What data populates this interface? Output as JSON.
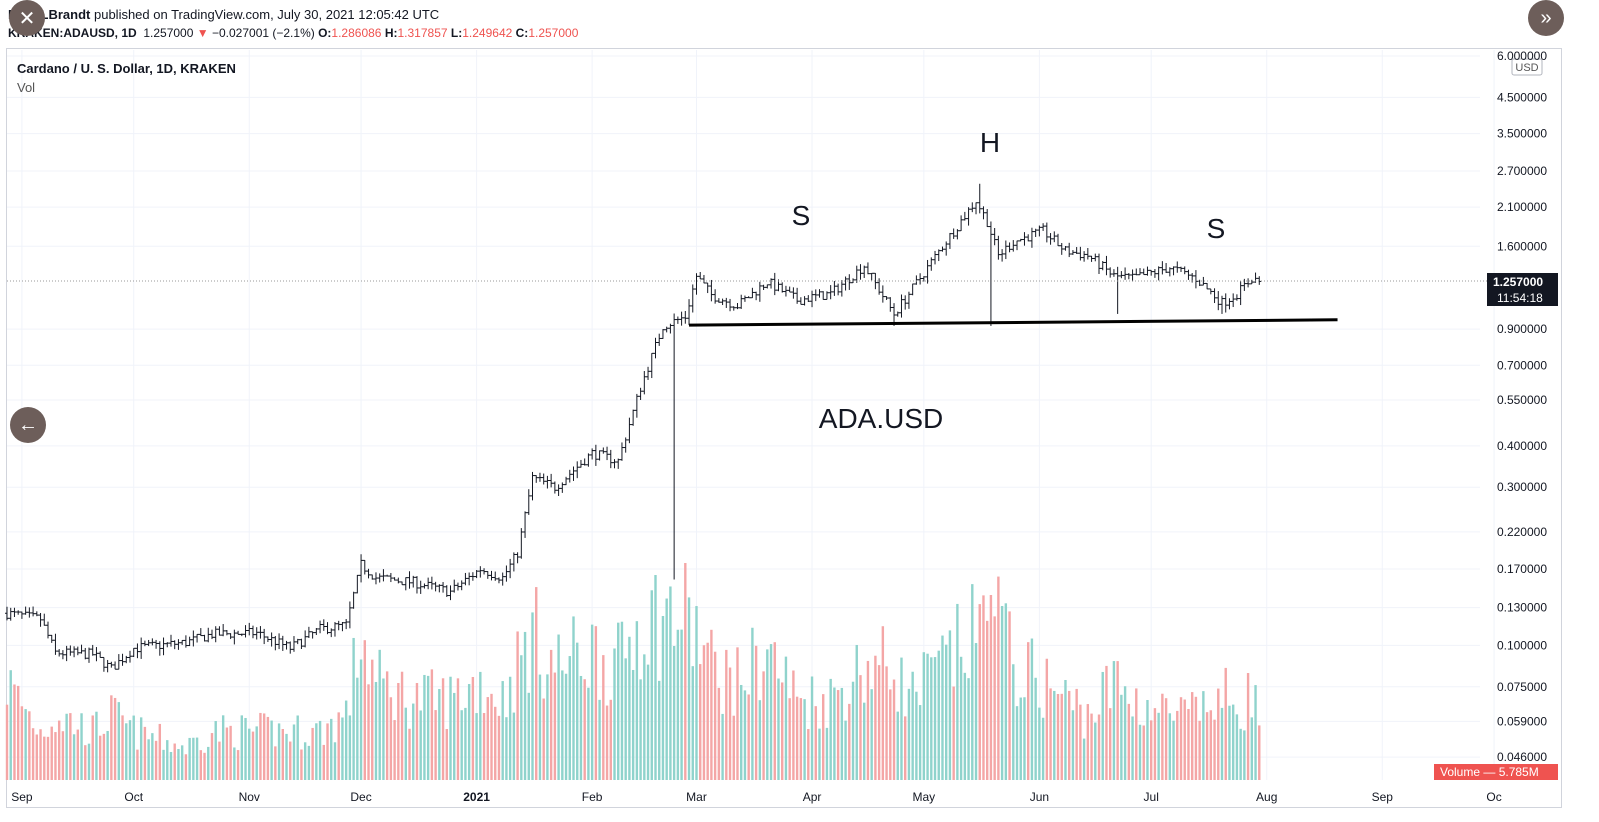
{
  "header": {
    "author": "PeterLBrandt",
    "published_text": "published on TradingView.com, July 30, 2021 12:05:42 UTC",
    "symbol": "KRAKEN:ADAUSD, 1D",
    "last": "1.257000",
    "change": "−0.027001 (−2.1%)",
    "o_label": "O:",
    "o": "1.286086",
    "h_label": "H:",
    "h": "1.317857",
    "l_label": "L:",
    "l": "1.249642",
    "c_label": "C:",
    "c": "1.257000"
  },
  "legend": {
    "title": "Cardano / U. S. Dollar, 1D, KRAKEN",
    "vol": "Vol"
  },
  "icons": {
    "close": "close-icon",
    "next": "double-chevron-right-icon",
    "prev": "arrow-left-icon"
  },
  "chart_data": {
    "type": "ohlc",
    "title": "Cardano / U. S. Dollar, 1D, KRAKEN",
    "price_scale": "log",
    "currency": "USD",
    "y_ticks": [
      "6.000000",
      "4.500000",
      "3.500000",
      "2.700000",
      "2.100000",
      "1.600000",
      "0.900000",
      "0.700000",
      "0.550000",
      "0.400000",
      "0.300000",
      "0.220000",
      "0.170000",
      "0.130000",
      "0.100000",
      "0.075000",
      "0.059000",
      "0.046000"
    ],
    "x_ticks": [
      "Sep",
      "Oct",
      "Nov",
      "Dec",
      "2021",
      "Feb",
      "Mar",
      "Apr",
      "May",
      "Jun",
      "Jul",
      "Aug",
      "Sep",
      "Oc"
    ],
    "last_price_label": "1.257000",
    "countdown_label": "11:54:18",
    "volume_label": "Volume — 5.785M",
    "annotations": [
      "S",
      "H",
      "S",
      "ADA.USD"
    ],
    "neckline": {
      "start": [
        "2021-02-27",
        0.925
      ],
      "end": [
        "2021-08-20",
        0.96
      ]
    },
    "colors": {
      "up": "#26a69a",
      "down": "#ef5350",
      "bar": "#131722",
      "volume_up": "#8fd3cc",
      "volume_down": "#f4a6a6"
    },
    "anchors": [
      [
        "2020-08-28",
        0.125,
        0.6
      ],
      [
        "2020-09-06",
        0.12,
        0.3
      ],
      [
        "2020-09-10",
        0.095,
        0.4
      ],
      [
        "2020-09-20",
        0.094,
        0.3
      ],
      [
        "2020-09-25",
        0.085,
        0.4
      ],
      [
        "2020-10-01",
        0.098,
        0.3
      ],
      [
        "2020-10-15",
        0.102,
        0.2
      ],
      [
        "2020-10-22",
        0.108,
        0.3
      ],
      [
        "2020-11-03",
        0.109,
        0.3
      ],
      [
        "2020-11-12",
        0.098,
        0.3
      ],
      [
        "2020-11-20",
        0.112,
        0.3
      ],
      [
        "2020-11-27",
        0.115,
        0.4
      ],
      [
        "2020-12-01",
        0.175,
        0.9
      ],
      [
        "2020-12-05",
        0.16,
        0.6
      ],
      [
        "2020-12-15",
        0.155,
        0.5
      ],
      [
        "2020-12-25",
        0.145,
        0.5
      ],
      [
        "2021-01-02",
        0.17,
        0.6
      ],
      [
        "2021-01-08",
        0.16,
        0.5
      ],
      [
        "2021-01-12",
        0.19,
        0.7
      ],
      [
        "2021-01-16",
        0.32,
        0.9
      ],
      [
        "2021-01-22",
        0.3,
        0.7
      ],
      [
        "2021-02-01",
        0.38,
        0.8
      ],
      [
        "2021-02-08",
        0.36,
        0.7
      ],
      [
        "2021-02-14",
        0.6,
        1.0
      ],
      [
        "2021-02-20",
        0.92,
        1.0
      ],
      [
        "2021-02-26",
        0.98,
        1.0
      ],
      [
        "2021-03-01",
        1.3,
        0.9
      ],
      [
        "2021-03-05",
        1.14,
        0.7
      ],
      [
        "2021-03-12",
        1.06,
        0.6
      ],
      [
        "2021-03-20",
        1.25,
        0.8
      ],
      [
        "2021-03-28",
        1.1,
        0.5
      ],
      [
        "2021-04-06",
        1.15,
        0.5
      ],
      [
        "2021-04-15",
        1.4,
        0.7
      ],
      [
        "2021-04-23",
        1.0,
        0.7
      ],
      [
        "2021-04-27",
        1.15,
        0.5
      ],
      [
        "2021-05-06",
        1.6,
        0.7
      ],
      [
        "2021-05-15",
        2.2,
        0.9
      ],
      [
        "2021-05-18",
        1.9,
        1.0
      ],
      [
        "2021-05-21",
        1.5,
        1.0
      ],
      [
        "2021-05-25",
        1.65,
        0.7
      ],
      [
        "2021-06-02",
        1.78,
        0.6
      ],
      [
        "2021-06-08",
        1.55,
        0.5
      ],
      [
        "2021-06-14",
        1.5,
        0.4
      ],
      [
        "2021-06-21",
        1.3,
        0.6
      ],
      [
        "2021-06-26",
        1.28,
        0.5
      ],
      [
        "2021-07-06",
        1.38,
        0.4
      ],
      [
        "2021-07-13",
        1.28,
        0.4
      ],
      [
        "2021-07-20",
        1.08,
        0.5
      ],
      [
        "2021-07-24",
        1.15,
        0.5
      ],
      [
        "2021-07-28",
        1.28,
        0.5
      ],
      [
        "2021-07-30",
        1.257,
        0.4
      ]
    ]
  }
}
